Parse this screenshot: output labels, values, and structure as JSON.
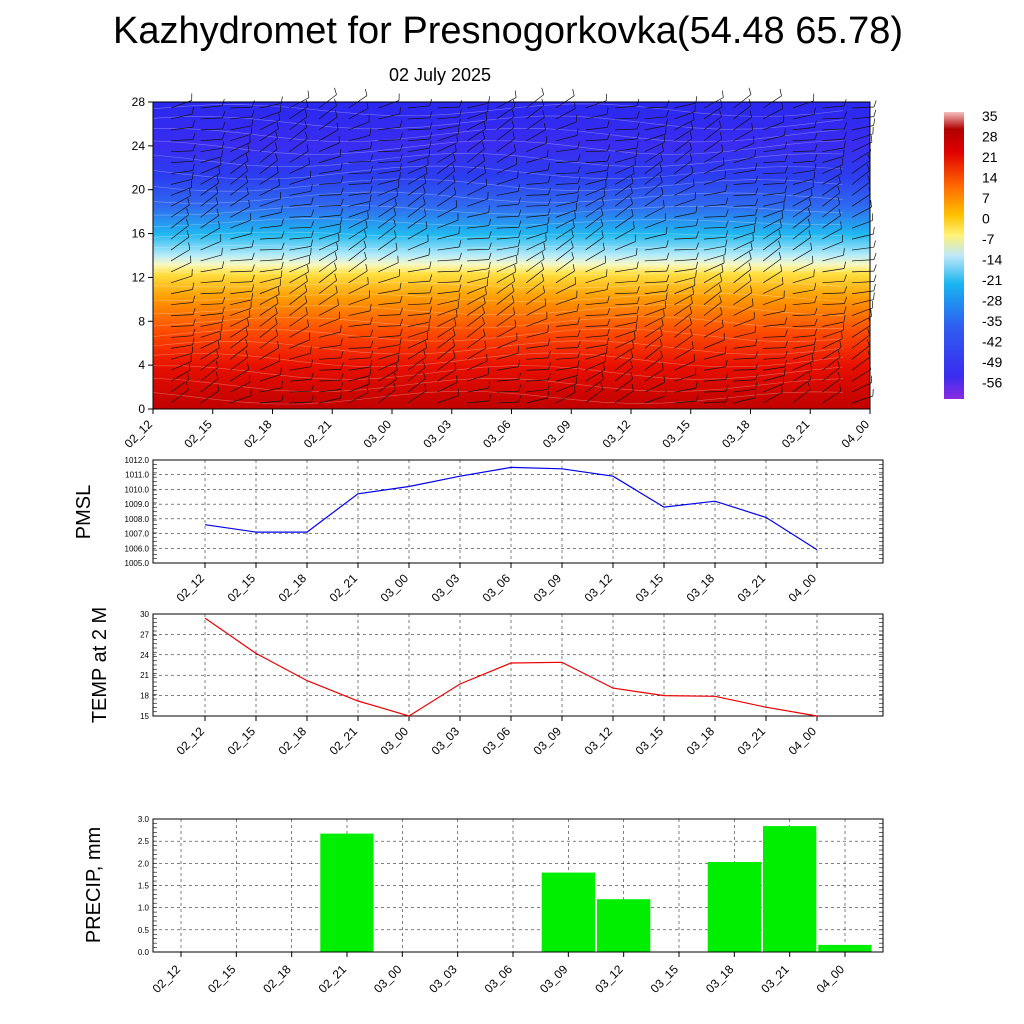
{
  "title": "Kazhydromet for Presnogorkovka(54.48 65.78)",
  "subtitle": "02 July 2025",
  "time_labels": [
    "02_12",
    "02_15",
    "02_18",
    "02_21",
    "03_00",
    "03_03",
    "03_06",
    "03_09",
    "03_12",
    "03_15",
    "03_18",
    "03_21",
    "04_00"
  ],
  "chart_data": [
    {
      "type": "heatmap",
      "title": "",
      "ylabel": "",
      "y_ticks": [
        0,
        4,
        8,
        12,
        16,
        20,
        24,
        28
      ],
      "ylim": [
        0,
        28
      ],
      "colorbar_ticks": [
        35,
        28,
        21,
        14,
        7,
        0,
        -7,
        -14,
        -21,
        -28,
        -35,
        -42,
        -49,
        -56
      ],
      "colorbar_range": [
        -60,
        38
      ],
      "wind_barbs": true
    },
    {
      "type": "line",
      "ylabel": "PMSL",
      "ylim": [
        1005.0,
        1012.0
      ],
      "y_ticks": [
        "1005.0",
        "1006.0",
        "1007.0",
        "1008.0",
        "1009.0",
        "1010.0",
        "1011.0",
        "1012.0"
      ],
      "color": "#0000ee",
      "values": [
        1007.6,
        1007.1,
        1007.1,
        1009.7,
        1010.2,
        1010.9,
        1011.5,
        1011.4,
        1010.9,
        1008.8,
        1009.2,
        1008.1,
        1005.9
      ],
      "grid": true
    },
    {
      "type": "line",
      "ylabel": "TEMP at 2 M",
      "ylim": [
        15,
        30
      ],
      "y_ticks": [
        "15",
        "18",
        "21",
        "24",
        "27",
        "30"
      ],
      "color": "#ee0000",
      "values": [
        29.4,
        24.2,
        20.2,
        17.2,
        15.0,
        19.7,
        22.8,
        22.9,
        19.1,
        18.0,
        17.9,
        16.3,
        15.0
      ],
      "grid": true
    },
    {
      "type": "bar",
      "ylabel": "PRECIP, mm",
      "ylim": [
        0,
        3.0
      ],
      "y_ticks": [
        "0.0",
        "0.5",
        "1.0",
        "1.5",
        "2.0",
        "2.5",
        "3.0"
      ],
      "color": "#00ee00",
      "values": [
        0,
        0,
        0,
        2.67,
        0,
        0,
        0,
        1.79,
        1.19,
        0,
        2.03,
        2.84,
        0.16
      ],
      "grid": true
    }
  ]
}
